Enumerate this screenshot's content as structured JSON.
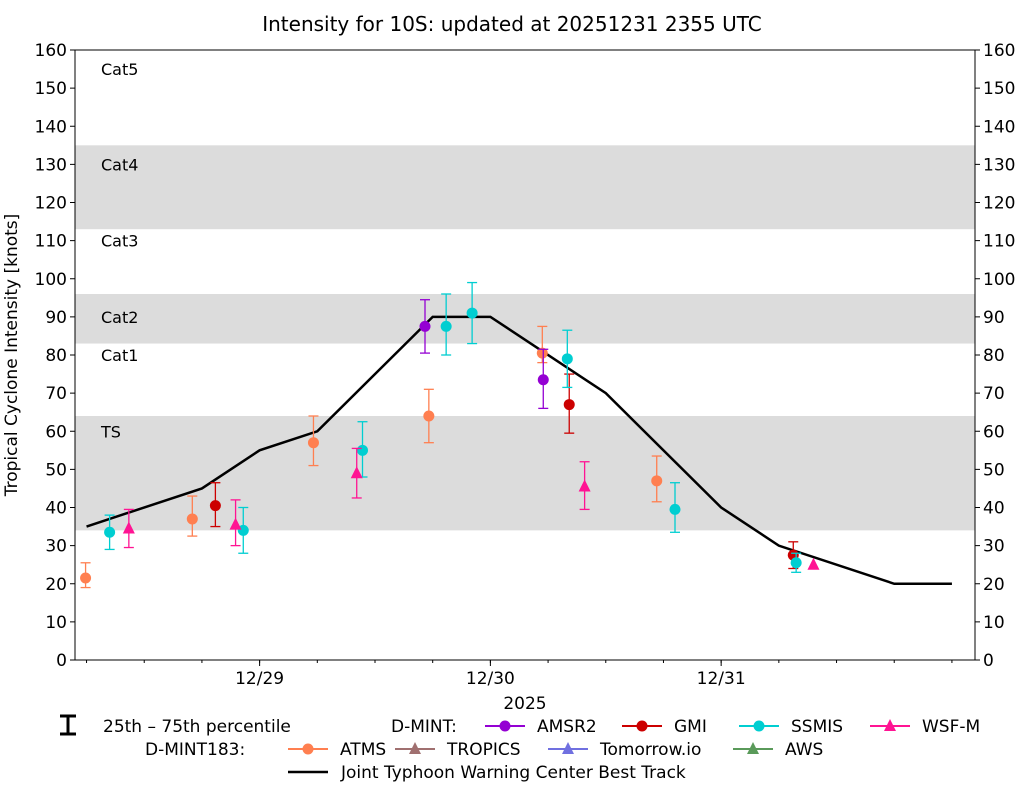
{
  "chart_data": {
    "type": "scatter",
    "title": "Intensity for 10S: updated at 20251231 2355 UTC",
    "xlabel": "2025",
    "ylabel": "Tropical Cyclone Intensity [knots]",
    "xlim": [
      "2025-12-28T04:48",
      "2026-01-01T02:24"
    ],
    "ylim": [
      0,
      160
    ],
    "yticks": [
      0,
      10,
      20,
      30,
      40,
      50,
      60,
      70,
      80,
      90,
      100,
      110,
      120,
      130,
      140,
      150,
      160
    ],
    "xticks": [
      {
        "t": "2025-12-29T00:00",
        "label": "12/29"
      },
      {
        "t": "2025-12-30T00:00",
        "label": "12/30"
      },
      {
        "t": "2025-12-31T00:00",
        "label": "12/31"
      }
    ],
    "minor_xtick_hours": 6,
    "grid": false,
    "bands": [
      {
        "label": "TS",
        "lo": 34,
        "hi": 64,
        "shaded": true,
        "label_y": 60
      },
      {
        "label": "Cat1",
        "lo": 64,
        "hi": 83,
        "shaded": false,
        "label_y": 80
      },
      {
        "label": "Cat2",
        "lo": 83,
        "hi": 96,
        "shaded": true,
        "label_y": 90
      },
      {
        "label": "Cat3",
        "lo": 96,
        "hi": 113,
        "shaded": false,
        "label_y": 110
      },
      {
        "label": "Cat4",
        "lo": 113,
        "hi": 135,
        "shaded": true,
        "label_y": 130
      },
      {
        "label": "Cat5",
        "lo": 135,
        "hi": 160,
        "shaded": false,
        "label_y": 155
      }
    ],
    "band_color": "#dcdcdc",
    "best_track": {
      "name": "Joint Typhoon Warning Center Best Track",
      "color": "#000000",
      "points": [
        [
          "2025-12-28T06:00",
          35
        ],
        [
          "2025-12-28T18:00",
          45
        ],
        [
          "2025-12-29T00:00",
          55
        ],
        [
          "2025-12-29T06:00",
          60
        ],
        [
          "2025-12-29T18:00",
          90
        ],
        [
          "2025-12-30T00:00",
          90
        ],
        [
          "2025-12-30T12:00",
          70
        ],
        [
          "2025-12-31T00:00",
          40
        ],
        [
          "2025-12-31T06:00",
          30
        ],
        [
          "2025-12-31T18:00",
          20
        ],
        [
          "2026-01-01T00:00",
          20
        ]
      ]
    },
    "series": [
      {
        "name": "ATMS",
        "group": "D-MINT183",
        "marker": "circle",
        "color": "#ff7f50",
        "points": [
          [
            "2025-12-28T05:54",
            21.5,
            19,
            25.5
          ],
          [
            "2025-12-28T17:00",
            37,
            32.5,
            43
          ],
          [
            "2025-12-29T05:36",
            57,
            51,
            64
          ],
          [
            "2025-12-29T17:36",
            64,
            57,
            71
          ],
          [
            "2025-12-30T05:24",
            80.5,
            78,
            87.5
          ],
          [
            "2025-12-30T17:18",
            47,
            41.5,
            53.5
          ]
        ]
      },
      {
        "name": "TROPICS",
        "group": "D-MINT183",
        "marker": "triangle",
        "color": "#a07070",
        "points": []
      },
      {
        "name": "Tomorrow.io",
        "group": "D-MINT183",
        "marker": "triangle",
        "color": "#7070e0",
        "points": []
      },
      {
        "name": "AWS",
        "group": "D-MINT183",
        "marker": "triangle",
        "color": "#5a9a5a",
        "points": []
      },
      {
        "name": "AMSR2",
        "group": "D-MINT",
        "marker": "circle",
        "color": "#9400d3",
        "points": [
          [
            "2025-12-29T17:12",
            87.5,
            80.5,
            94.5
          ],
          [
            "2025-12-30T05:30",
            73.5,
            66,
            81.5
          ]
        ]
      },
      {
        "name": "GMI",
        "group": "D-MINT",
        "marker": "circle",
        "color": "#cc0000",
        "points": [
          [
            "2025-12-28T19:24",
            40.5,
            35,
            46.5
          ],
          [
            "2025-12-30T08:12",
            67,
            59.5,
            75
          ],
          [
            "2025-12-31T07:30",
            27.5,
            24,
            31
          ]
        ]
      },
      {
        "name": "SSMIS",
        "group": "D-MINT",
        "marker": "circle",
        "color": "#00ced1",
        "points": [
          [
            "2025-12-28T08:24",
            33.5,
            29,
            38
          ],
          [
            "2025-12-28T22:18",
            34,
            28,
            40
          ],
          [
            "2025-12-29T10:42",
            55,
            48,
            62.5
          ],
          [
            "2025-12-29T19:24",
            87.5,
            80,
            96
          ],
          [
            "2025-12-29T22:06",
            91,
            83,
            99
          ],
          [
            "2025-12-30T08:00",
            79,
            71.5,
            86.5
          ],
          [
            "2025-12-30T19:12",
            39.5,
            33.5,
            46.5
          ],
          [
            "2025-12-31T07:48",
            25.5,
            23,
            28
          ]
        ]
      },
      {
        "name": "WSF-M",
        "group": "D-MINT",
        "marker": "triangle",
        "color": "#ff1493",
        "points": [
          [
            "2025-12-28T10:24",
            34.5,
            29.5,
            39.5
          ],
          [
            "2025-12-28T21:30",
            35.5,
            30,
            42
          ],
          [
            "2025-12-29T10:06",
            49,
            42.5,
            55.5
          ],
          [
            "2025-12-30T09:48",
            45.5,
            39.5,
            52
          ],
          [
            "2025-12-31T09:36",
            25,
            25,
            25
          ]
        ]
      }
    ],
    "legend": {
      "placement": "bottom",
      "percentile_label": "25th – 75th percentile",
      "dmint_label": "D-MINT:",
      "dmint183_label": "D-MINT183:"
    }
  }
}
